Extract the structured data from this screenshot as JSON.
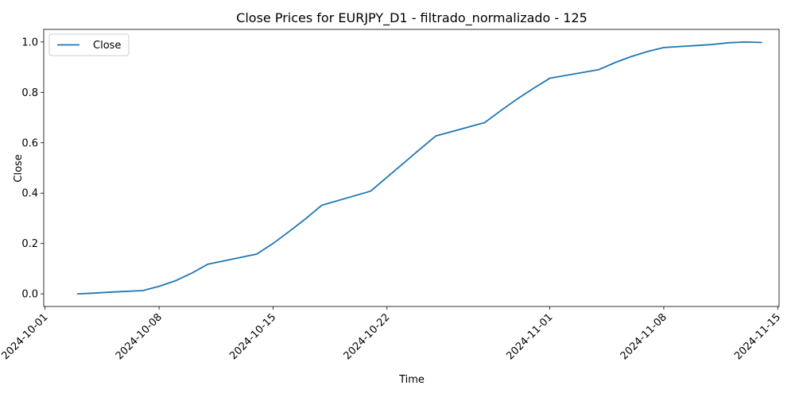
{
  "chart_data": {
    "type": "line",
    "title": "Close Prices for EURJPY_D1 - filtrado_normalizado - 125",
    "xlabel": "Time",
    "ylabel": "Close",
    "x_tick_labels": [
      "2024-10-01",
      "2024-10-08",
      "2024-10-15",
      "2024-10-22",
      "2024-11-01",
      "2024-11-08",
      "2024-11-15"
    ],
    "y_tick_labels": [
      "0.0",
      "0.2",
      "0.4",
      "0.6",
      "0.8",
      "1.0"
    ],
    "xlim": [
      "2024-09-30T22:00",
      "2024-11-15T02:00"
    ],
    "ylim": [
      -0.05,
      1.05
    ],
    "grid": false,
    "legend_position": "top-left",
    "series": [
      {
        "name": "Close",
        "color": "#1f77b4",
        "x": [
          "2024-10-03",
          "2024-10-04",
          "2024-10-05",
          "2024-10-06",
          "2024-10-07",
          "2024-10-08",
          "2024-10-09",
          "2024-10-10",
          "2024-10-11",
          "2024-10-14",
          "2024-10-15",
          "2024-10-16",
          "2024-10-17",
          "2024-10-18",
          "2024-10-21",
          "2024-10-22",
          "2024-10-23",
          "2024-10-24",
          "2024-10-25",
          "2024-10-28",
          "2024-10-29",
          "2024-10-30",
          "2024-10-31",
          "2024-11-01",
          "2024-11-04",
          "2024-11-05",
          "2024-11-06",
          "2024-11-07",
          "2024-11-08",
          "2024-11-11",
          "2024-11-12",
          "2024-11-13",
          "2024-11-14"
        ],
        "values": [
          0.0,
          0.003,
          0.007,
          0.01,
          0.013,
          0.03,
          0.052,
          0.082,
          0.118,
          0.158,
          0.2,
          0.248,
          0.298,
          0.352,
          0.408,
          0.463,
          0.518,
          0.573,
          0.627,
          0.68,
          0.728,
          0.774,
          0.816,
          0.856,
          0.89,
          0.918,
          0.942,
          0.962,
          0.978,
          0.99,
          0.997,
          1.0,
          0.998
        ]
      }
    ]
  }
}
